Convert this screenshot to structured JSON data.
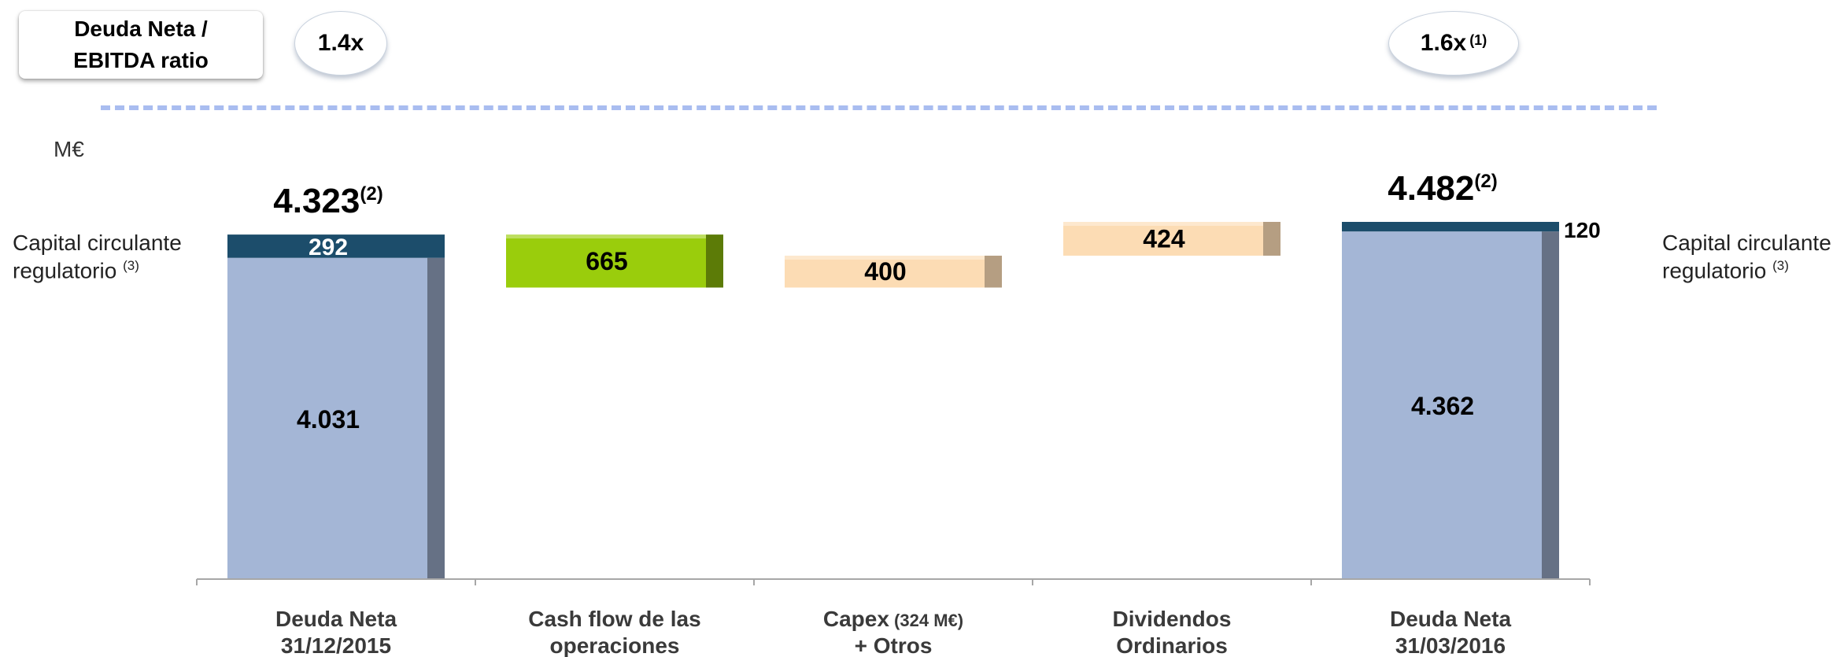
{
  "ratio_section": {
    "label_line1": "Deuda Neta /",
    "label_line2": "EBITDA ratio",
    "start_ratio": "1.4x",
    "end_ratio": "1.6x",
    "end_ratio_note": "(1)"
  },
  "unit": "M€",
  "side_labels": {
    "left_line1": "Capital circulante",
    "left_line2": "regulatorio",
    "left_note": "(3)",
    "right_line1": "Capital circulante",
    "right_line2": "regulatorio",
    "right_note": "(3)"
  },
  "colors": {
    "debt_body": "#a4b6d6",
    "debt_cap": "#1c4d6b",
    "cash_flow": "#9acd0c",
    "outflow": "#fcdcb4"
  },
  "chart_data": {
    "type": "bar",
    "subtype": "waterfall",
    "categories": [
      "Deuda Neta 31/12/2015",
      "Cash flow de las operaciones",
      "Capex (324 M€) + Otros",
      "Dividendos Ordinarios",
      "Deuda Neta 31/03/2016"
    ],
    "category_labels": [
      {
        "line1": "Deuda Neta",
        "line2": "31/12/2015",
        "line1_small": ""
      },
      {
        "line1": "Cash flow de las",
        "line2": "operaciones",
        "line1_small": ""
      },
      {
        "line1": "Capex",
        "line2": "+ Otros",
        "line1_small": "(324 M€)"
      },
      {
        "line1": "Dividendos",
        "line2": "Ordinarios",
        "line1_small": ""
      },
      {
        "line1": "Deuda Neta",
        "line2": "31/03/2016",
        "line1_small": ""
      }
    ],
    "bars": [
      {
        "kind": "total",
        "base": 0,
        "main": 4031,
        "cap": 292,
        "main_label": "4.031",
        "cap_label": "292",
        "total_label": "4.323",
        "total_note": "(2)"
      },
      {
        "kind": "decrease",
        "start": 4323,
        "delta": -665,
        "label": "665"
      },
      {
        "kind": "increase",
        "start": 3658,
        "delta": 400,
        "label": "400"
      },
      {
        "kind": "increase",
        "start": 4058,
        "delta": 424,
        "label": "424"
      },
      {
        "kind": "total",
        "base": 0,
        "main": 4362,
        "cap": 120,
        "main_label": "4.362",
        "cap_label": "120",
        "total_label": "4.482",
        "total_note": "(2)"
      }
    ],
    "ylim": [
      0,
      4482
    ],
    "grid": false,
    "legend": "none"
  }
}
